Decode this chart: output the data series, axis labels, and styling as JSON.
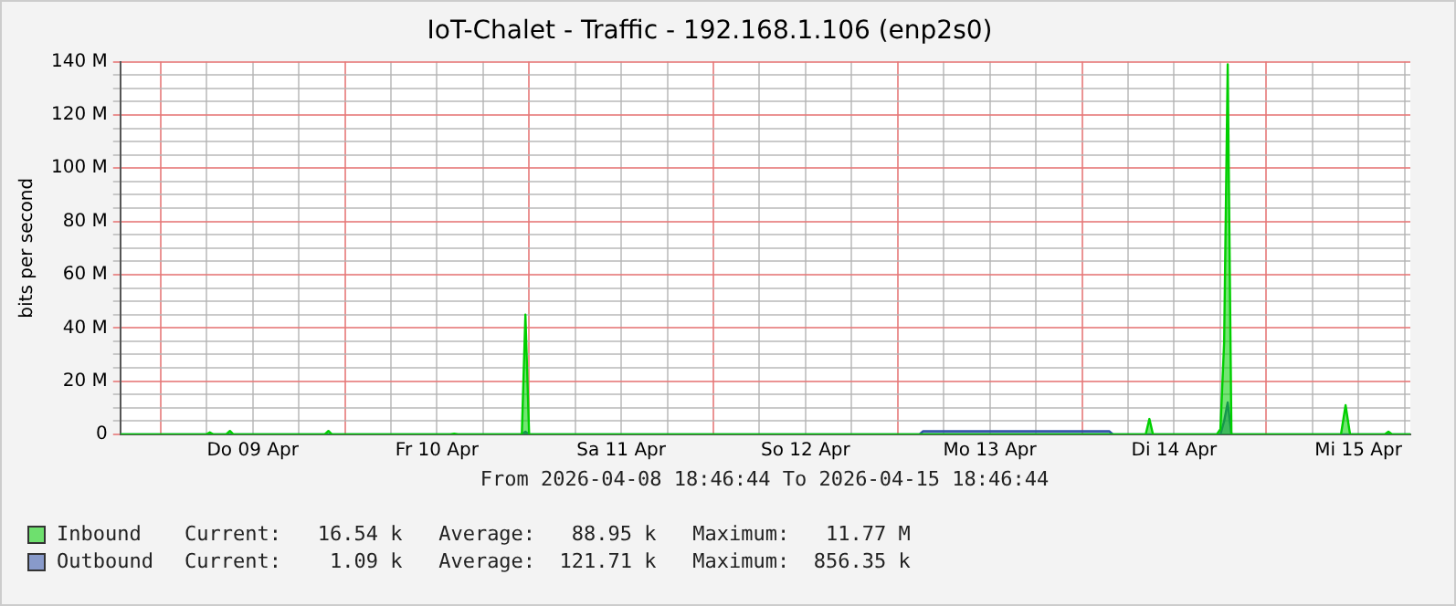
{
  "chart_data": {
    "type": "area",
    "title": "IoT-Chalet - Traffic - 192.168.1.106 (enp2s0)",
    "ylabel": "bits per second",
    "xlim": [
      "2026-04-08T18:46",
      "2026-04-15T18:46"
    ],
    "xticks": [
      {
        "value": "2026-04-09T00:00",
        "label": null
      },
      {
        "value": "2026-04-09T06:00",
        "label": null
      },
      {
        "value": "2026-04-09T12:00",
        "label": "Do 09 Apr"
      },
      {
        "value": "2026-04-09T18:00",
        "label": null
      },
      {
        "value": "2026-04-10T00:00",
        "label": null
      },
      {
        "value": "2026-04-10T06:00",
        "label": null
      },
      {
        "value": "2026-04-10T12:00",
        "label": "Fr 10 Apr"
      },
      {
        "value": "2026-04-10T18:00",
        "label": null
      },
      {
        "value": "2026-04-11T00:00",
        "label": null
      },
      {
        "value": "2026-04-11T06:00",
        "label": null
      },
      {
        "value": "2026-04-11T12:00",
        "label": "Sa 11 Apr"
      },
      {
        "value": "2026-04-11T18:00",
        "label": null
      },
      {
        "value": "2026-04-12T00:00",
        "label": null
      },
      {
        "value": "2026-04-12T06:00",
        "label": null
      },
      {
        "value": "2026-04-12T12:00",
        "label": "So 12 Apr"
      },
      {
        "value": "2026-04-12T18:00",
        "label": null
      },
      {
        "value": "2026-04-13T00:00",
        "label": null
      },
      {
        "value": "2026-04-13T06:00",
        "label": null
      },
      {
        "value": "2026-04-13T12:00",
        "label": "Mo 13 Apr"
      },
      {
        "value": "2026-04-13T18:00",
        "label": null
      },
      {
        "value": "2026-04-14T00:00",
        "label": null
      },
      {
        "value": "2026-04-14T06:00",
        "label": null
      },
      {
        "value": "2026-04-14T12:00",
        "label": "Di 14 Apr"
      },
      {
        "value": "2026-04-14T18:00",
        "label": null
      },
      {
        "value": "2026-04-15T00:00",
        "label": null
      },
      {
        "value": "2026-04-15T06:00",
        "label": null
      },
      {
        "value": "2026-04-15T12:00",
        "label": "Mi 15 Apr"
      },
      {
        "value": "2026-04-15T18:00",
        "label": null
      }
    ],
    "ylim": [
      0,
      140000000
    ],
    "yticks": [
      {
        "value": 0,
        "label": "0"
      },
      {
        "value": 5000000,
        "label": null
      },
      {
        "value": 10000000,
        "label": null
      },
      {
        "value": 15000000,
        "label": null
      },
      {
        "value": 20000000,
        "label": "20 M"
      },
      {
        "value": 25000000,
        "label": null
      },
      {
        "value": 30000000,
        "label": null
      },
      {
        "value": 35000000,
        "label": null
      },
      {
        "value": 40000000,
        "label": "40 M"
      },
      {
        "value": 45000000,
        "label": null
      },
      {
        "value": 50000000,
        "label": null
      },
      {
        "value": 55000000,
        "label": null
      },
      {
        "value": 60000000,
        "label": "60 M"
      },
      {
        "value": 65000000,
        "label": null
      },
      {
        "value": 70000000,
        "label": null
      },
      {
        "value": 75000000,
        "label": null
      },
      {
        "value": 80000000,
        "label": "80 M"
      },
      {
        "value": 85000000,
        "label": null
      },
      {
        "value": 90000000,
        "label": null
      },
      {
        "value": 95000000,
        "label": null
      },
      {
        "value": 100000000,
        "label": "100 M"
      },
      {
        "value": 105000000,
        "label": null
      },
      {
        "value": 110000000,
        "label": null
      },
      {
        "value": 115000000,
        "label": null
      },
      {
        "value": 120000000,
        "label": "120 M"
      },
      {
        "value": 125000000,
        "label": null
      },
      {
        "value": 130000000,
        "label": null
      },
      {
        "value": 135000000,
        "label": null
      },
      {
        "value": 140000000,
        "label": "140 M"
      }
    ],
    "grid": true,
    "legend": "bottom",
    "series": [
      {
        "name": "Inbound",
        "color": "#00cf00",
        "x": [
          "2026-04-08T18:46",
          "2026-04-09T05:56",
          "2026-04-09T06:25",
          "2026-04-09T06:53",
          "2026-04-09T08:33",
          "2026-04-09T09:02",
          "2026-04-09T09:30",
          "2026-04-09T21:23",
          "2026-04-09T21:52",
          "2026-04-09T22:20",
          "2026-04-10T13:47",
          "2026-04-10T14:15",
          "2026-04-10T14:44",
          "2026-04-10T23:03",
          "2026-04-10T23:31",
          "2026-04-11T00:00",
          "2026-04-14T08:18",
          "2026-04-14T08:47",
          "2026-04-14T09:15",
          "2026-04-14T17:34",
          "2026-04-14T18:02",
          "2026-04-14T18:31",
          "2026-04-14T18:59",
          "2026-04-14T19:28",
          "2026-04-15T09:44",
          "2026-04-15T10:20",
          "2026-04-15T10:55",
          "2026-04-15T15:26",
          "2026-04-15T15:55",
          "2026-04-15T16:23",
          "2026-04-15T18:46"
        ],
        "values": [
          0,
          0,
          800000,
          0,
          0,
          1300000,
          0,
          0,
          1300000,
          0,
          0,
          300000,
          0,
          0,
          45000000,
          0,
          0,
          5800000,
          0,
          0,
          2000000,
          34500000,
          139000000,
          0,
          0,
          11000000,
          0,
          0,
          1000000,
          0,
          0
        ]
      },
      {
        "name": "Outbound",
        "color": "#3050a8",
        "x": [
          "2026-04-08T18:46",
          "2026-04-10T23:03",
          "2026-04-10T23:31",
          "2026-04-11T00:00",
          "2026-04-13T02:50",
          "2026-04-13T03:19",
          "2026-04-14T03:33",
          "2026-04-14T04:02",
          "2026-04-14T18:02",
          "2026-04-14T18:31",
          "2026-04-14T18:59",
          "2026-04-14T19:28",
          "2026-04-15T18:46"
        ],
        "values": [
          0,
          0,
          1000000,
          0,
          0,
          1200000,
          1200000,
          0,
          0,
          5000000,
          12000000,
          0,
          0
        ]
      }
    ],
    "annotations": [
      "From 2026-04-08 18:46:44 To 2026-04-15 18:46:44",
      "Current:   16.54 k   Average:   88.95 k   Maximum:   11.77 M",
      "Current:    1.09 k   Average:  121.71 k   Maximum:  856.35 k"
    ]
  }
}
